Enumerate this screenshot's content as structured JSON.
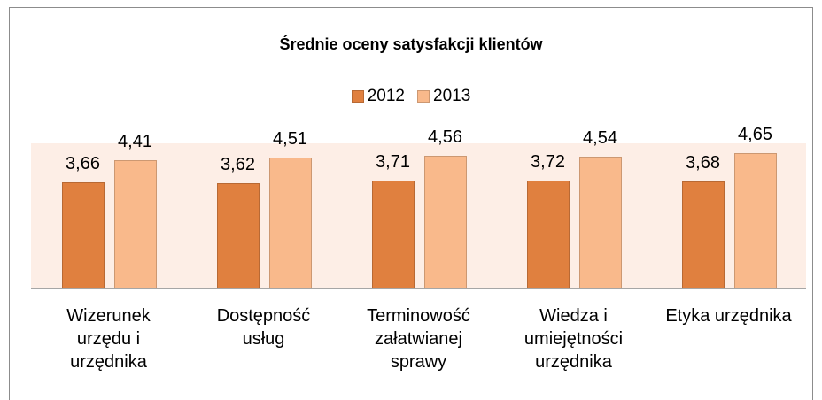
{
  "chart_data": {
    "type": "bar",
    "title": "Średnie oceny satysfakcji klientów",
    "categories": [
      "Wizerunek urzędu i urzędnika",
      "Dostępność usług",
      "Terminowość załatwianej sprawy",
      "Wiedza i umiejętności urzędnika",
      "Etyka urzędnika"
    ],
    "series": [
      {
        "name": "2012",
        "color": "#e0803f",
        "values": [
          3.66,
          3.62,
          3.71,
          3.72,
          3.68
        ],
        "value_labels": [
          "3,66",
          "3,62",
          "3,71",
          "3,72",
          "3,68"
        ]
      },
      {
        "name": "2013",
        "color": "#f9b98b",
        "values": [
          4.41,
          4.51,
          4.56,
          4.54,
          4.65
        ],
        "value_labels": [
          "4,41",
          "4,51",
          "4,56",
          "4,54",
          "4,65"
        ]
      }
    ],
    "ylim": [
      0,
      5
    ],
    "legend": "top"
  }
}
